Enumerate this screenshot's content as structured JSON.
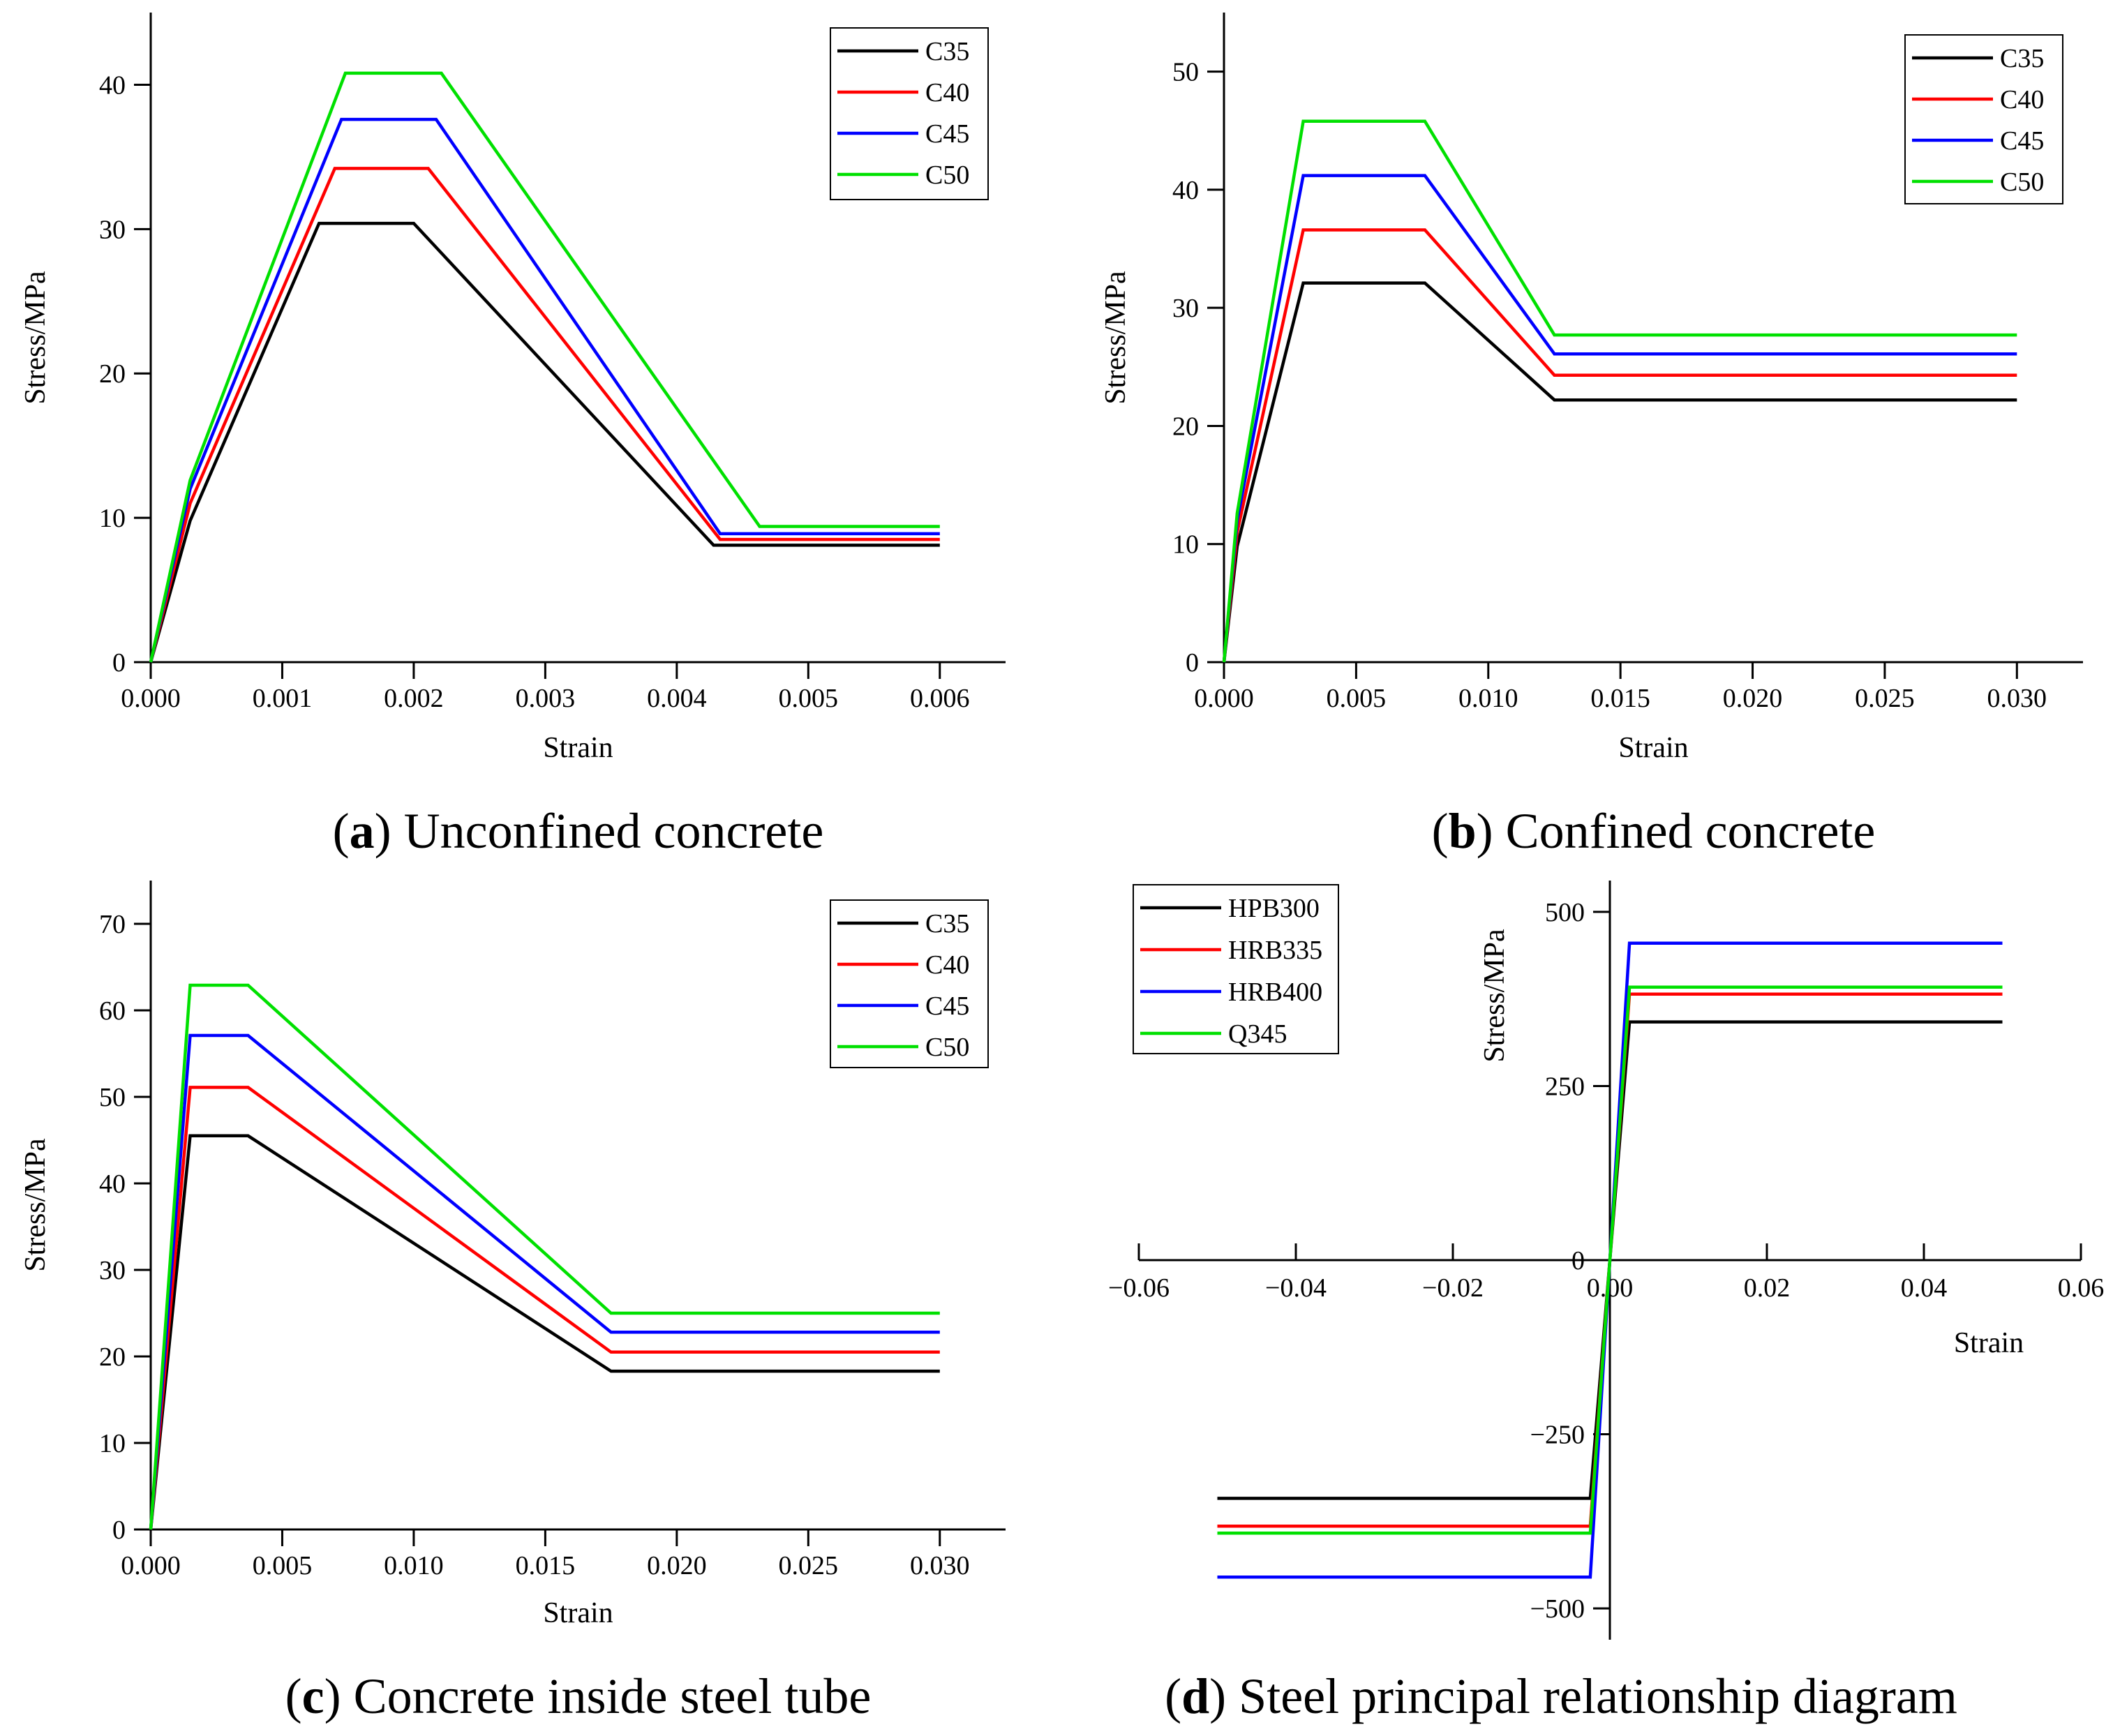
{
  "chart_data": [
    {
      "id": "a",
      "type": "line",
      "caption": {
        "letter": "a",
        "text": "Unconfined concrete"
      },
      "xlabel": "Strain",
      "ylabel": "Stress/MPa",
      "xlim": [
        0,
        0.0065
      ],
      "ylim": [
        0,
        45
      ],
      "xticks": [
        0,
        0.001,
        0.002,
        0.003,
        0.004,
        0.005,
        0.006
      ],
      "xtick_labels": [
        "0.000",
        "0.001",
        "0.002",
        "0.003",
        "0.004",
        "0.005",
        "0.006"
      ],
      "yticks": [
        0,
        10,
        20,
        30,
        40
      ],
      "ytick_labels": [
        "0",
        "10",
        "20",
        "30",
        "40"
      ],
      "grid": false,
      "legend_position": "top-right",
      "series": [
        {
          "name": "C35",
          "color": "#000000",
          "x": [
            0,
            0.0003,
            0.00128,
            0.002,
            0.00428,
            0.006
          ],
          "y": [
            0,
            9.8,
            30.4,
            30.4,
            8.1,
            8.1
          ]
        },
        {
          "name": "C40",
          "color": "#ff0000",
          "x": [
            0,
            0.0003,
            0.0014,
            0.00211,
            0.00433,
            0.006
          ],
          "y": [
            0,
            11.0,
            34.2,
            34.2,
            8.5,
            8.5
          ]
        },
        {
          "name": "C45",
          "color": "#0000ff",
          "x": [
            0,
            0.0003,
            0.00145,
            0.00217,
            0.00433,
            0.006
          ],
          "y": [
            0,
            12.0,
            37.6,
            37.6,
            8.9,
            8.9
          ]
        },
        {
          "name": "C50",
          "color": "#00e000",
          "x": [
            0,
            0.0003,
            0.00148,
            0.00221,
            0.00463,
            0.006
          ],
          "y": [
            0,
            12.6,
            40.8,
            40.8,
            9.4,
            9.4
          ]
        }
      ]
    },
    {
      "id": "b",
      "type": "line",
      "caption": {
        "letter": "b",
        "text": "Confined concrete"
      },
      "xlabel": "Strain",
      "ylabel": "Stress/MPa",
      "xlim": [
        0,
        0.0325
      ],
      "ylim": [
        0,
        55
      ],
      "xticks": [
        0,
        0.005,
        0.01,
        0.015,
        0.02,
        0.025,
        0.03
      ],
      "xtick_labels": [
        "0.000",
        "0.005",
        "0.010",
        "0.015",
        "0.020",
        "0.025",
        "0.030"
      ],
      "yticks": [
        0,
        10,
        20,
        30,
        40,
        50
      ],
      "ytick_labels": [
        "0",
        "10",
        "20",
        "30",
        "40",
        "50"
      ],
      "grid": false,
      "legend_position": "top-right",
      "series": [
        {
          "name": "C35",
          "color": "#000000",
          "x": [
            0,
            0.0005,
            0.003,
            0.0076,
            0.0125,
            0.03
          ],
          "y": [
            0,
            9.8,
            32.1,
            32.1,
            22.2,
            22.2
          ]
        },
        {
          "name": "C40",
          "color": "#ff0000",
          "x": [
            0,
            0.0005,
            0.003,
            0.0076,
            0.0125,
            0.03
          ],
          "y": [
            0,
            11.0,
            36.6,
            36.6,
            24.3,
            24.3
          ]
        },
        {
          "name": "C45",
          "color": "#0000ff",
          "x": [
            0,
            0.0005,
            0.003,
            0.0076,
            0.0125,
            0.03
          ],
          "y": [
            0,
            12.0,
            41.2,
            41.2,
            26.1,
            26.1
          ]
        },
        {
          "name": "C50",
          "color": "#00e000",
          "x": [
            0,
            0.0005,
            0.003,
            0.0076,
            0.0125,
            0.03
          ],
          "y": [
            0,
            12.6,
            45.8,
            45.8,
            27.7,
            27.7
          ]
        }
      ]
    },
    {
      "id": "c",
      "type": "line",
      "caption": {
        "letter": "c",
        "text": "Concrete inside steel tube"
      },
      "xlabel": "Strain",
      "ylabel": "Stress/MPa",
      "xlim": [
        0,
        0.0325
      ],
      "ylim": [
        0,
        75
      ],
      "xticks": [
        0,
        0.005,
        0.01,
        0.015,
        0.02,
        0.025,
        0.03
      ],
      "xtick_labels": [
        "0.000",
        "0.005",
        "0.010",
        "0.015",
        "0.020",
        "0.025",
        "0.030"
      ],
      "yticks": [
        0,
        10,
        20,
        30,
        40,
        50,
        60,
        70
      ],
      "ytick_labels": [
        "0",
        "10",
        "20",
        "30",
        "40",
        "50",
        "60",
        "70"
      ],
      "grid": false,
      "legend_position": "top-right",
      "series": [
        {
          "name": "C35",
          "color": "#000000",
          "x": [
            0,
            0.0015,
            0.0037,
            0.0175,
            0.03
          ],
          "y": [
            0,
            45.5,
            45.5,
            18.3,
            18.3
          ]
        },
        {
          "name": "C40",
          "color": "#ff0000",
          "x": [
            0,
            0.0015,
            0.0037,
            0.0175,
            0.03
          ],
          "y": [
            0,
            51.1,
            51.1,
            20.5,
            20.5
          ]
        },
        {
          "name": "C45",
          "color": "#0000ff",
          "x": [
            0,
            0.0015,
            0.0037,
            0.0175,
            0.03
          ],
          "y": [
            0,
            57.1,
            57.1,
            22.8,
            22.8
          ]
        },
        {
          "name": "C50",
          "color": "#00e000",
          "x": [
            0,
            0.0015,
            0.0037,
            0.0175,
            0.03
          ],
          "y": [
            0,
            62.9,
            62.9,
            25.0,
            25.0
          ]
        }
      ]
    },
    {
      "id": "d",
      "type": "line",
      "caption": {
        "letter": "d",
        "text": "Steel principal relationship diagram"
      },
      "xlabel": "Strain",
      "ylabel": "Stress/MPa",
      "xlim": [
        -0.06,
        0.06
      ],
      "ylim": [
        -545,
        545
      ],
      "xticks": [
        -0.06,
        -0.04,
        -0.02,
        0,
        0.02,
        0.04,
        0.06
      ],
      "xtick_labels": [
        "−0.06",
        "−0.04",
        "−0.02",
        "0.00",
        "0.02",
        "0.04",
        "0.06"
      ],
      "yticks": [
        -500,
        -250,
        0,
        250,
        500
      ],
      "ytick_labels": [
        "−500",
        "−250",
        "0",
        "250",
        "500"
      ],
      "grid": false,
      "axes_through_origin": true,
      "legend_position": "top-left",
      "series": [
        {
          "name": "HPB300",
          "color": "#000000",
          "x": [
            -0.05,
            -0.0025,
            0.0025,
            0.05
          ],
          "y": [
            -342,
            -342,
            342,
            342
          ]
        },
        {
          "name": "HRB335",
          "color": "#ff0000",
          "x": [
            -0.05,
            -0.0025,
            0.0025,
            0.05
          ],
          "y": [
            -382,
            -382,
            382,
            382
          ]
        },
        {
          "name": "HRB400",
          "color": "#0000ff",
          "x": [
            -0.05,
            -0.0025,
            0.0025,
            0.05
          ],
          "y": [
            -455,
            -455,
            455,
            455
          ]
        },
        {
          "name": "Q345",
          "color": "#00e000",
          "x": [
            -0.05,
            -0.0025,
            0.0025,
            0.05
          ],
          "y": [
            -392,
            -392,
            392,
            392
          ]
        }
      ]
    }
  ]
}
